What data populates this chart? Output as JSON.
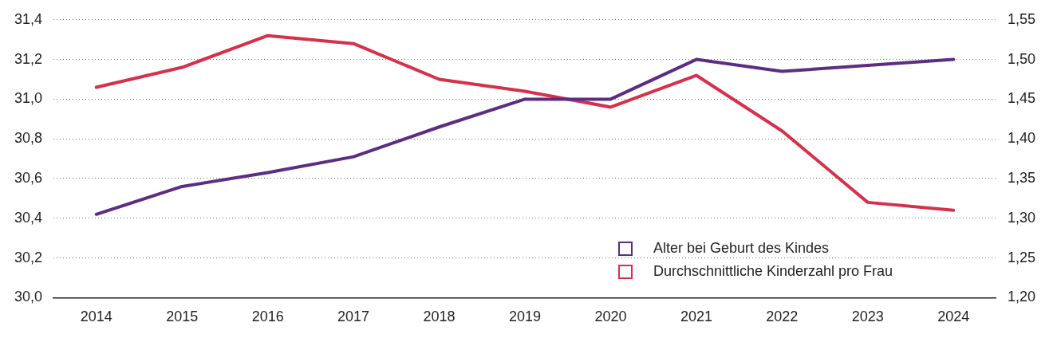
{
  "chart_data": {
    "type": "line",
    "categories": [
      "2014",
      "2015",
      "2016",
      "2017",
      "2018",
      "2019",
      "2020",
      "2021",
      "2022",
      "2023",
      "2024"
    ],
    "series": [
      {
        "name": "Alter bei Geburt des Kindes",
        "color": "#5b2d83",
        "values": [
          30.42,
          30.56,
          30.63,
          30.71,
          30.86,
          31.0,
          31.0,
          31.2,
          31.14,
          31.17,
          31.2
        ]
      },
      {
        "name": "Durchschnittliche Kinderzahl pro Frau",
        "color": "#d6304a",
        "axis": "y2",
        "values": [
          1.465,
          1.49,
          1.53,
          1.52,
          1.475,
          1.46,
          1.44,
          1.48,
          1.41,
          1.32,
          1.31
        ]
      }
    ],
    "ylim": [
      30.0,
      31.4
    ],
    "yticks": [
      {
        "value": 30.0,
        "label": "30,0"
      },
      {
        "value": 30.2,
        "label": "30,2"
      },
      {
        "value": 30.4,
        "label": "30,4"
      },
      {
        "value": 30.6,
        "label": "30,6"
      },
      {
        "value": 30.8,
        "label": "30,8"
      },
      {
        "value": 31.0,
        "label": "31,0"
      },
      {
        "value": 31.2,
        "label": "31,2"
      },
      {
        "value": 31.4,
        "label": "31,4"
      }
    ],
    "y2lim": [
      1.2,
      1.55
    ],
    "y2ticks": [
      {
        "value": 1.2,
        "label": "1,20"
      },
      {
        "value": 1.25,
        "label": "1,25"
      },
      {
        "value": 1.3,
        "label": "1,30"
      },
      {
        "value": 1.35,
        "label": "1,35"
      },
      {
        "value": 1.4,
        "label": "1,40"
      },
      {
        "value": 1.45,
        "label": "1,45"
      },
      {
        "value": 1.5,
        "label": "1,50"
      },
      {
        "value": 1.55,
        "label": "1,55"
      }
    ],
    "grid": "y",
    "legend": "bottom right",
    "marker": "none",
    "line_style": "solid"
  }
}
